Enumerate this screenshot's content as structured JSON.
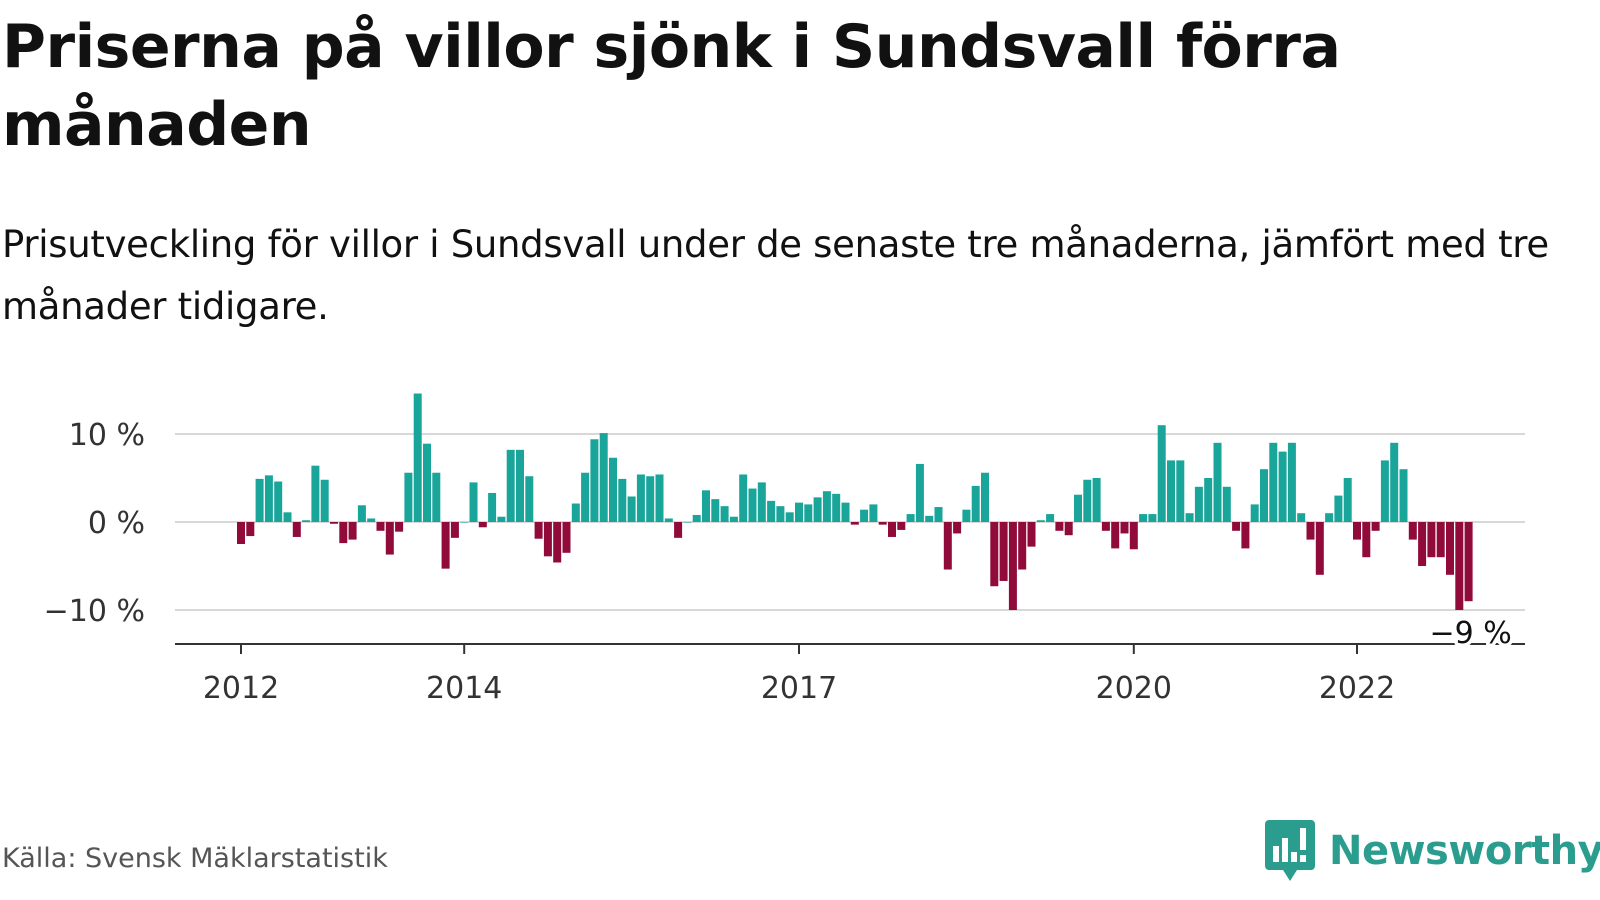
{
  "title": "Priserna på villor sjönk i Sundsvall förra månaden",
  "subtitle": "Prisutveckling för villor i Sundsvall under de senaste tre månaderna, jämfört med tre månader tidigare.",
  "source": "Källa: Svensk Mäklarstatistik",
  "logo": {
    "text": "Newsworthy",
    "icon": "newsworthy-chart-bubble-icon"
  },
  "colors": {
    "positive": "#1aa59a",
    "negative": "#900a3a",
    "grid": "#d8d8d8",
    "axis": "#333333",
    "brand": "#2a9d8f"
  },
  "chart_data": {
    "type": "bar",
    "start": "2012-01",
    "unit": "%",
    "ylim": [
      -14,
      16
    ],
    "grid": true,
    "yticks": [
      {
        "value": 10,
        "label": "10 %"
      },
      {
        "value": 0,
        "label": "0 %"
      },
      {
        "value": -10,
        "label": "−10 %"
      }
    ],
    "xticks": [
      {
        "index": 0,
        "label": "2012"
      },
      {
        "index": 24,
        "label": "2014"
      },
      {
        "index": 60,
        "label": "2017"
      },
      {
        "index": 96,
        "label": "2020"
      },
      {
        "index": 120,
        "label": "2022"
      }
    ],
    "last_label": "−9 %",
    "values": [
      -2.5,
      -1.6,
      4.9,
      5.3,
      4.6,
      1.1,
      -1.7,
      0.2,
      6.4,
      4.8,
      -0.2,
      -2.4,
      -2.0,
      1.9,
      0.4,
      -1.0,
      -3.7,
      -1.1,
      5.6,
      14.6,
      8.9,
      5.6,
      -5.3,
      -1.8,
      0.0,
      4.5,
      -0.6,
      3.3,
      0.6,
      8.2,
      8.2,
      5.2,
      -1.9,
      -3.9,
      -4.6,
      -3.5,
      2.1,
      5.6,
      9.4,
      10.1,
      7.3,
      4.9,
      2.9,
      5.4,
      5.2,
      5.4,
      0.4,
      -1.8,
      0.0,
      0.8,
      3.6,
      2.6,
      1.8,
      0.6,
      5.4,
      3.8,
      4.5,
      2.4,
      1.8,
      1.1,
      2.2,
      2.0,
      2.8,
      3.5,
      3.2,
      2.2,
      -0.3,
      1.4,
      2.0,
      -0.3,
      -1.7,
      -0.9,
      0.9,
      6.6,
      0.7,
      1.7,
      -5.4,
      -1.3,
      1.4,
      4.1,
      5.6,
      -7.3,
      -6.7,
      -10.0,
      -5.4,
      -2.8,
      0.2,
      0.9,
      -1.0,
      -1.5,
      3.1,
      4.8,
      5.0,
      -1.0,
      -3.0,
      -1.3,
      -3.1,
      0.9,
      0.9,
      11.0,
      7.0,
      7.0,
      1.0,
      4.0,
      5.0,
      9.0,
      4.0,
      -1.0,
      -3.0,
      2.0,
      6.0,
      9.0,
      8.0,
      9.0,
      1.0,
      -2.0,
      -6.0,
      1.0,
      3.0,
      5.0,
      -2.0,
      -4.0,
      -1.0,
      7.0,
      9.0,
      6.0,
      -2.0,
      -5.0,
      -4.0,
      -4.0,
      -6.0,
      -10.0,
      -9.0
    ]
  }
}
